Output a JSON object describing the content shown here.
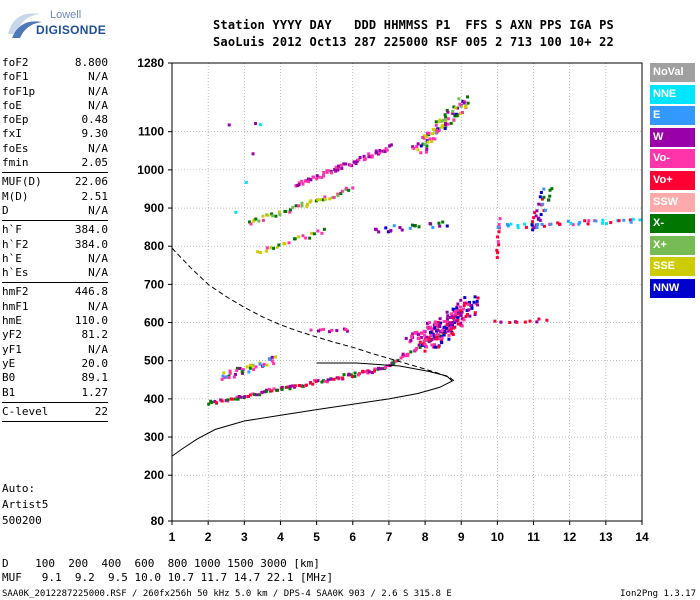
{
  "logo": {
    "line1": "Lowell",
    "line2": "DIGISONDE"
  },
  "header": {
    "line1": "Station YYYY DAY   DDD HHMMSS P1  FFS S AXN PPS IGA PS",
    "line2": "SaoLuis 2012 Oct13 287 225000 RSF 005 2 713 100 10+ 22"
  },
  "params": {
    "group1": [
      {
        "name": "foF2",
        "value": "8.800"
      },
      {
        "name": "foF1",
        "value": "N/A"
      },
      {
        "name": "foF1p",
        "value": "N/A"
      },
      {
        "name": "foE",
        "value": "N/A"
      },
      {
        "name": "foEp",
        "value": "0.48"
      },
      {
        "name": "fxI",
        "value": "9.30"
      },
      {
        "name": "foEs",
        "value": "N/A"
      },
      {
        "name": "fmin",
        "value": "2.05"
      }
    ],
    "group2": [
      {
        "name": "MUF(D)",
        "value": "22.06"
      },
      {
        "name": "M(D)",
        "value": "2.51"
      },
      {
        "name": "D",
        "value": "N/A"
      }
    ],
    "group3": [
      {
        "name": "h`F",
        "value": "384.0"
      },
      {
        "name": "h`F2",
        "value": "384.0"
      },
      {
        "name": "h`E",
        "value": "N/A"
      },
      {
        "name": "h`Es",
        "value": "N/A"
      }
    ],
    "group4": [
      {
        "name": "hmF2",
        "value": "446.8"
      },
      {
        "name": "hmF1",
        "value": "N/A"
      },
      {
        "name": "hmE",
        "value": "110.0"
      },
      {
        "name": "yF2",
        "value": "81.2"
      },
      {
        "name": "yF1",
        "value": "N/A"
      },
      {
        "name": "yE",
        "value": "20.0"
      },
      {
        "name": "B0",
        "value": "89.1"
      },
      {
        "name": "B1",
        "value": "1.27"
      }
    ],
    "group5": [
      {
        "name": "C-level",
        "value": "22"
      }
    ]
  },
  "autoscale": {
    "line1": "Auto:",
    "line2": "Artist5",
    "line3": "500200"
  },
  "muf_table": {
    "row1": "D    100  200  400  600  800 1000 1500 3000 [km]",
    "row2": "MUF   9.1  9.2  9.5 10.0 10.7 11.7 14.7 22.1 [MHz]"
  },
  "footer": {
    "left": "SAA0K_2012287225000.RSF / 260fx256h 50 kHz 5.0 km / DPS-4 SAA0K 903 / 2.6 S 315.8 E",
    "right": "Ion2Png 1.3.17"
  },
  "legend": [
    {
      "label": "NoVal",
      "color": "#a0a0a0"
    },
    {
      "label": "NNE",
      "color": "#00e5ff"
    },
    {
      "label": "E",
      "color": "#3399ff"
    },
    {
      "label": "W",
      "color": "#9900aa"
    },
    {
      "label": "Vo-",
      "color": "#ff33aa"
    },
    {
      "label": "Vo+",
      "color": "#ff0033"
    },
    {
      "label": "SSW",
      "color": "#ffaaaa"
    },
    {
      "label": "X-",
      "color": "#007700"
    },
    {
      "label": "X+",
      "color": "#77bb55"
    },
    {
      "label": "SSE",
      "color": "#cccc00"
    },
    {
      "label": "NNW",
      "color": "#0000cc"
    }
  ],
  "chart_data": {
    "type": "scatter",
    "xlim": [
      1,
      14
    ],
    "ylim": [
      80,
      1280
    ],
    "xticks": [
      "1",
      "2",
      "3",
      "4",
      "5",
      "6",
      "7",
      "8",
      "9",
      "10",
      "11",
      "12",
      "13",
      "14"
    ],
    "yticks": [
      {
        "v": 80,
        "label": "80"
      },
      {
        "v": 200,
        "label": "200"
      },
      {
        "v": 300,
        "label": "300"
      },
      {
        "v": 400,
        "label": "400"
      },
      {
        "v": 500,
        "label": "500"
      },
      {
        "v": 600,
        "label": "600"
      },
      {
        "v": 700,
        "label": "700"
      },
      {
        "v": 800,
        "label": "800"
      },
      {
        "v": 900,
        "label": "900"
      },
      {
        "v": 1000,
        "label": "1000"
      },
      {
        "v": 1100,
        "label": "1100"
      },
      {
        "v": 1280,
        "label": "1280"
      }
    ],
    "grid": true,
    "clusters": [
      {
        "x": 2.0,
        "y": 388,
        "x2": 6.8,
        "y2": 478,
        "n": 95,
        "jx": 0.05,
        "jy": 5,
        "colors": [
          "#ff33aa",
          "#9900aa",
          "#007700",
          "#ff0033"
        ]
      },
      {
        "x": 6.8,
        "y": 478,
        "x2": 8.8,
        "y2": 590,
        "n": 45,
        "jx": 0.06,
        "jy": 6,
        "colors": [
          "#007700",
          "#9900aa",
          "#ff33aa"
        ]
      },
      {
        "x": 8.0,
        "y": 540,
        "x2": 9.3,
        "y2": 650,
        "n": 170,
        "jx": 0.25,
        "jy": 22,
        "colors": [
          "#9900aa",
          "#ff33aa",
          "#ff0033",
          "#0000cc"
        ]
      },
      {
        "x": 7.5,
        "y": 555,
        "x2": 8.4,
        "y2": 600,
        "n": 30,
        "jx": 0.1,
        "jy": 12,
        "colors": [
          "#9900aa",
          "#ff33aa"
        ]
      },
      {
        "x": 2.3,
        "y": 455,
        "x2": 3.9,
        "y2": 500,
        "n": 40,
        "jx": 0.1,
        "jy": 12,
        "colors": [
          "#ff33aa",
          "#9900aa",
          "#cccc00",
          "#007700",
          "#3399ff"
        ]
      },
      {
        "x": 4.4,
        "y": 960,
        "x2": 7.1,
        "y2": 1060,
        "n": 70,
        "jx": 0.05,
        "jy": 6,
        "colors": [
          "#9900aa",
          "#ff33aa"
        ]
      },
      {
        "x": 7.8,
        "y": 1050,
        "x2": 9.1,
        "y2": 1180,
        "n": 90,
        "jx": 0.18,
        "jy": 14,
        "colors": [
          "#9900aa",
          "#cccc00",
          "#007700",
          "#0000cc",
          "#ff33aa",
          "#77bb55"
        ]
      },
      {
        "x": 3.1,
        "y": 860,
        "x2": 6.0,
        "y2": 950,
        "n": 45,
        "jx": 0.05,
        "jy": 6,
        "colors": [
          "#007700",
          "#cccc00",
          "#ff33aa",
          "#77bb55"
        ]
      },
      {
        "x": 3.4,
        "y": 785,
        "x2": 5.2,
        "y2": 840,
        "n": 22,
        "jx": 0.05,
        "jy": 6,
        "colors": [
          "#007700",
          "#cccc00",
          "#ff33aa"
        ]
      },
      {
        "x": 10.0,
        "y": 770,
        "x2": 10.05,
        "y2": 870,
        "n": 10,
        "jx": 0.03,
        "jy": 4,
        "colors": [
          "#ff33aa",
          "#ff0033"
        ]
      },
      {
        "x": 10.1,
        "y": 852,
        "x2": 14.0,
        "y2": 868,
        "n": 40,
        "jx": 0.1,
        "jy": 6,
        "colors": [
          "#ff0033",
          "#3399ff",
          "#ff33aa",
          "#00e5ff"
        ]
      },
      {
        "x": 11.0,
        "y": 840,
        "x2": 11.4,
        "y2": 950,
        "n": 30,
        "jx": 0.15,
        "jy": 8,
        "colors": [
          "#ff0033",
          "#9900aa",
          "#0000cc",
          "#3399ff",
          "#007700"
        ]
      },
      {
        "x": 6.6,
        "y": 840,
        "x2": 8.5,
        "y2": 860,
        "n": 22,
        "jx": 0.2,
        "jy": 8,
        "colors": [
          "#0000cc",
          "#9900aa",
          "#3399ff",
          "#007700"
        ]
      },
      {
        "x": 4.9,
        "y": 580,
        "x2": 5.9,
        "y2": 580,
        "n": 10,
        "jx": 0.1,
        "jy": 4,
        "colors": [
          "#9900aa",
          "#ff33aa"
        ]
      },
      {
        "x": 10.0,
        "y": 602,
        "x2": 11.3,
        "y2": 606,
        "n": 10,
        "jx": 0.08,
        "jy": 4,
        "colors": [
          "#9900aa",
          "#ff0033"
        ]
      },
      {
        "x": 3.0,
        "y": 860,
        "x2": 3.0,
        "y2": 1230,
        "n": 6,
        "jx": 0.6,
        "jy": 120,
        "colors": [
          "#00e5ff",
          "#3399ff",
          "#9900aa"
        ]
      }
    ],
    "profile_solid": [
      [
        1.0,
        250
      ],
      [
        1.3,
        270
      ],
      [
        1.7,
        295
      ],
      [
        2.2,
        320
      ],
      [
        3.0,
        342
      ],
      [
        4.0,
        357
      ],
      [
        5.0,
        372
      ],
      [
        6.0,
        386
      ],
      [
        7.0,
        400
      ],
      [
        7.8,
        414
      ],
      [
        8.4,
        430
      ],
      [
        8.75,
        446.8
      ],
      [
        8.6,
        460
      ],
      [
        8.1,
        472
      ],
      [
        7.3,
        486
      ],
      [
        6.1,
        494
      ],
      [
        5.0,
        494
      ]
    ],
    "profile_dashed": [
      [
        1.0,
        795
      ],
      [
        1.5,
        745
      ],
      [
        2.0,
        700
      ],
      [
        2.5,
        668
      ],
      [
        3.0,
        640
      ],
      [
        3.5,
        615
      ],
      [
        4.0,
        594
      ],
      [
        4.5,
        577
      ],
      [
        5.0,
        562
      ],
      [
        5.5,
        548
      ],
      [
        6.0,
        535
      ],
      [
        6.5,
        520
      ],
      [
        7.0,
        506
      ],
      [
        7.5,
        492
      ],
      [
        8.0,
        478
      ],
      [
        8.4,
        466
      ],
      [
        8.7,
        455
      ],
      [
        8.8,
        447
      ]
    ]
  }
}
